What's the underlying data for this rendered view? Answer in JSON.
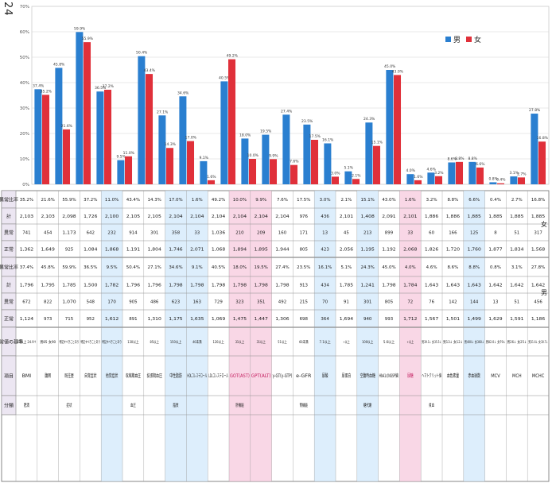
{
  "page_number": "24",
  "colors": {
    "male": "#2a7fd0",
    "female": "#e0303a",
    "table_header_bg": "#ece6f2",
    "highlight_blue": "#cfe7fb",
    "highlight_pink": "#f7c6dc",
    "dark_row": "#2b2b3a",
    "light_row": "#f2f2f2"
  },
  "table": {
    "header": {
      "category": "分類",
      "item": "項目",
      "criteria": "異常値の基準",
      "male_group": "男",
      "female_group": "女",
      "normal": "正常",
      "abnormal": "異常",
      "total": "計",
      "ratio": "異常比率"
    },
    "rows": [
      {
        "category": "肥満",
        "item": "BMI",
        "criteria": "25以上 24.9↑",
        "m_normal": "1,124",
        "m_abnormal": "672",
        "m_total": "1,796",
        "m_ratio": "37.4%",
        "f_normal": "1,362",
        "f_abnormal": "741",
        "f_total": "2,103",
        "f_ratio": "35.2%",
        "highlight": "none"
      },
      {
        "category": "",
        "item": "腹囲",
        "criteria": "男85 女90",
        "m_normal": "973",
        "m_abnormal": "822",
        "m_total": "1,795",
        "m_ratio": "45.8%",
        "f_normal": "1,649",
        "f_abnormal": "454",
        "f_total": "2,103",
        "f_ratio": "21.6%",
        "highlight": "none"
      },
      {
        "category": "症状",
        "item": "既往歴",
        "criteria": "特記すべきことあり",
        "m_normal": "715",
        "m_abnormal": "1,070",
        "m_total": "1,785",
        "m_ratio": "59.9%",
        "f_normal": "925",
        "f_abnormal": "1,173",
        "f_total": "2,098",
        "f_ratio": "55.9%",
        "highlight": "none"
      },
      {
        "category": "",
        "item": "自覚症状",
        "criteria": "特記すべきことあり",
        "m_normal": "952",
        "m_abnormal": "548",
        "m_total": "1,500",
        "m_ratio": "36.5%",
        "f_normal": "1,084",
        "f_abnormal": "642",
        "f_total": "1,726",
        "f_ratio": "37.2%",
        "highlight": "none"
      },
      {
        "category": "",
        "item": "他覚症状",
        "criteria": "特記すべきことあり",
        "m_normal": "1,612",
        "m_abnormal": "170",
        "m_total": "1,782",
        "m_ratio": "9.5%",
        "f_normal": "1,868",
        "f_abnormal": "232",
        "f_total": "2,100",
        "f_ratio": "11.0%",
        "highlight": "blue"
      },
      {
        "category": "血圧",
        "item": "収縮期血圧",
        "criteria": "130以上",
        "m_normal": "891",
        "m_abnormal": "905",
        "m_total": "1,796",
        "m_ratio": "50.4%",
        "f_normal": "1,191",
        "f_abnormal": "914",
        "f_total": "2,105",
        "f_ratio": "43.4%",
        "highlight": "none"
      },
      {
        "category": "",
        "item": "拡張期血圧",
        "criteria": "85以上",
        "m_normal": "1,310",
        "m_abnormal": "486",
        "m_total": "1,796",
        "m_ratio": "27.1%",
        "f_normal": "1,804",
        "f_abnormal": "301",
        "f_total": "2,105",
        "f_ratio": "14.3%",
        "highlight": "none"
      },
      {
        "category": "脂質",
        "item": "中性脂肪",
        "criteria": "150以上",
        "m_normal": "1,175",
        "m_abnormal": "623",
        "m_total": "1,798",
        "m_ratio": "34.6%",
        "f_normal": "1,746",
        "f_abnormal": "358",
        "f_total": "2,104",
        "f_ratio": "17.0%",
        "highlight": "blue"
      },
      {
        "category": "",
        "item": "HDLコレステロール",
        "criteria": "40未満",
        "m_normal": "1,635",
        "m_abnormal": "163",
        "m_total": "1,798",
        "m_ratio": "9.1%",
        "f_normal": "2,071",
        "f_abnormal": "33",
        "f_total": "2,104",
        "f_ratio": "1.6%",
        "highlight": "blue"
      },
      {
        "category": "",
        "item": "LDLコレステロール",
        "criteria": "120以上",
        "m_normal": "1,069",
        "m_abnormal": "729",
        "m_total": "1,798",
        "m_ratio": "40.5%",
        "f_normal": "1,068",
        "f_abnormal": "1,036",
        "f_total": "2,104",
        "f_ratio": "49.2%",
        "highlight": "none"
      },
      {
        "category": "肝機能",
        "item": "GOT(AST)",
        "criteria": "31以上",
        "m_normal": "1,475",
        "m_abnormal": "323",
        "m_total": "1,798",
        "m_ratio": "18.0%",
        "f_normal": "1,894",
        "f_abnormal": "210",
        "f_total": "2,104",
        "f_ratio": "10.0%",
        "highlight": "pink"
      },
      {
        "category": "",
        "item": "GPT(ALT)",
        "criteria": "31以上",
        "m_normal": "1,447",
        "m_abnormal": "351",
        "m_total": "1,798",
        "m_ratio": "19.5%",
        "f_normal": "1,895",
        "f_abnormal": "209",
        "f_total": "2,104",
        "f_ratio": "9.9%",
        "highlight": "pink"
      },
      {
        "category": "",
        "item": "γ-GT(γ-GTP)",
        "criteria": "51以上",
        "m_normal": "1,306",
        "m_abnormal": "492",
        "m_total": "1,798",
        "m_ratio": "27.4%",
        "f_normal": "1,944",
        "f_abnormal": "160",
        "f_total": "2,104",
        "f_ratio": "7.6%",
        "highlight": "none"
      },
      {
        "category": "腎機能",
        "item": "e-GFR",
        "criteria": "60未満",
        "m_normal": "698",
        "m_abnormal": "215",
        "m_total": "913",
        "m_ratio": "23.5%",
        "f_normal": "805",
        "f_abnormal": "171",
        "f_total": "976",
        "f_ratio": "17.5%",
        "highlight": "none"
      },
      {
        "category": "",
        "item": "尿酸",
        "criteria": "7.1以上",
        "m_normal": "364",
        "m_abnormal": "70",
        "m_total": "434",
        "m_ratio": "16.1%",
        "f_normal": "423",
        "f_abnormal": "13",
        "f_total": "436",
        "f_ratio": "3.0%",
        "highlight": "blue"
      },
      {
        "category": "",
        "item": "尿蛋白",
        "criteria": "+以上",
        "m_normal": "1,694",
        "m_abnormal": "91",
        "m_total": "1,785",
        "m_ratio": "5.1%",
        "f_normal": "2,056",
        "f_abnormal": "45",
        "f_total": "2,101",
        "f_ratio": "2.1%",
        "highlight": "none"
      },
      {
        "category": "糖代謝",
        "item": "空腹時血糖",
        "criteria": "100以上",
        "m_normal": "940",
        "m_abnormal": "301",
        "m_total": "1,241",
        "m_ratio": "24.3%",
        "f_normal": "1,195",
        "f_abnormal": "213",
        "f_total": "1,408",
        "f_ratio": "15.1%",
        "highlight": "blue"
      },
      {
        "category": "",
        "item": "HbA1c(NGSP値)",
        "criteria": "5.6以上",
        "m_normal": "993",
        "m_abnormal": "805",
        "m_total": "1,798",
        "m_ratio": "45.0%",
        "f_normal": "1,192",
        "f_abnormal": "899",
        "f_total": "2,091",
        "f_ratio": "43.0%",
        "highlight": "none"
      },
      {
        "category": "",
        "item": "尿糖",
        "criteria": "+以上",
        "m_normal": "1,712",
        "m_abnormal": "72",
        "m_total": "1,784",
        "m_ratio": "4.0%",
        "f_normal": "2,068",
        "f_abnormal": "33",
        "f_total": "2,101",
        "f_ratio": "1.6%",
        "highlight": "pink"
      },
      {
        "category": "貧血",
        "item": "ヘマトクリット値",
        "criteria": "男39.1↓ 女35.5↓",
        "m_normal": "1,567",
        "m_abnormal": "76",
        "m_total": "1,643",
        "m_ratio": "4.6%",
        "f_normal": "1,826",
        "f_abnormal": "60",
        "f_total": "1,886",
        "f_ratio": "3.2%",
        "highlight": "none"
      },
      {
        "category": "",
        "item": "血色素量",
        "criteria": "男13↓ 女12↓",
        "m_normal": "1,501",
        "m_abnormal": "142",
        "m_total": "1,643",
        "m_ratio": "8.6%",
        "f_normal": "1,720",
        "f_abnormal": "166",
        "f_total": "1,886",
        "f_ratio": "8.8%",
        "highlight": "none"
      },
      {
        "category": "",
        "item": "赤血球数",
        "criteria": "男400↓ 女360↓",
        "m_normal": "1,499",
        "m_abnormal": "144",
        "m_total": "1,643",
        "m_ratio": "8.8%",
        "f_normal": "1,760",
        "f_abnormal": "125",
        "f_total": "1,885",
        "f_ratio": "6.6%",
        "highlight": "blue"
      },
      {
        "category": "",
        "item": "MCV",
        "criteria": "男82.0↓ 女79↓",
        "m_normal": "1,629",
        "m_abnormal": "13",
        "m_total": "1,642",
        "m_ratio": "0.8%",
        "f_normal": "1,877",
        "f_abnormal": "8",
        "f_total": "1,885",
        "f_ratio": "0.4%",
        "highlight": "none"
      },
      {
        "category": "",
        "item": "MCH",
        "criteria": "男26↓ 女25↓",
        "m_normal": "1,591",
        "m_abnormal": "51",
        "m_total": "1,642",
        "m_ratio": "3.1%",
        "f_normal": "1,834",
        "f_abnormal": "51",
        "f_total": "1,885",
        "f_ratio": "2.7%",
        "highlight": "none"
      },
      {
        "category": "",
        "item": "MCHC",
        "criteria": "男31.6↓ 女30.7↓",
        "m_normal": "1,186",
        "m_abnormal": "456",
        "m_total": "1,642",
        "m_ratio": "27.8%",
        "f_normal": "1,568",
        "f_abnormal": "317",
        "f_total": "1,885",
        "f_ratio": "16.8%",
        "highlight": "none"
      }
    ]
  },
  "chart_data": {
    "type": "bar",
    "categories": [
      "BMI",
      "腹囲",
      "既往歴",
      "自覚症状",
      "他覚症状",
      "収縮期血圧",
      "拡張期血圧",
      "中性脂肪",
      "HDLコレステロール",
      "LDLコレステロール",
      "GOT(AST)",
      "GPT(ALT)",
      "γ-GT(γ-GTP)",
      "e-GFR",
      "尿酸",
      "尿蛋白",
      "空腹時血糖",
      "HbA1c(NGSP値)",
      "尿糖",
      "ヘマトクリット値",
      "血色素量",
      "赤血球数",
      "MCV",
      "MCH",
      "MCHC"
    ],
    "series": [
      {
        "name": "男",
        "color": "#2a7fd0",
        "values": [
          37.4,
          45.8,
          59.9,
          36.5,
          9.5,
          50.4,
          27.1,
          34.6,
          9.1,
          40.5,
          18.0,
          19.5,
          27.4,
          23.5,
          16.1,
          5.1,
          24.3,
          45.0,
          4.0,
          4.6,
          8.6,
          8.8,
          0.8,
          3.1,
          27.8
        ],
        "labels": [
          "37.4%",
          "45.8%",
          "59.9%",
          "36.5%",
          "9.5%",
          "50.4%",
          "27.1%",
          "34.6%",
          "9.1%",
          "40.5%",
          "18.0%",
          "19.5%",
          "27.4%",
          "23.5%",
          "16.1%",
          "5.1%",
          "24.3%",
          "45.0%",
          "4.0%",
          "4.6%",
          "8.6%",
          "8.8%",
          "0.8%",
          "3.1%",
          "27.8%"
        ]
      },
      {
        "name": "女",
        "color": "#e0303a",
        "values": [
          35.2,
          21.6,
          55.9,
          37.2,
          11.0,
          43.4,
          14.3,
          17.0,
          1.6,
          49.2,
          10.0,
          9.9,
          7.6,
          17.5,
          3.0,
          2.1,
          15.1,
          43.0,
          1.6,
          3.2,
          8.8,
          6.6,
          0.4,
          2.7,
          16.8
        ],
        "labels": [
          "35.2%",
          "21.6%",
          "55.9%",
          "37.2%",
          "11.0%",
          "43.4%",
          "14.3%",
          "17.0%",
          "1.6%",
          "49.2%",
          "10.0%",
          "9.9%",
          "7.6%",
          "17.5%",
          "3.0%",
          "2.1%",
          "15.1%",
          "43.0%",
          "1.6%",
          "3.2%",
          "8.8%",
          "6.6%",
          "0.4%",
          "2.7%",
          "16.8%"
        ]
      }
    ],
    "ylim": [
      0,
      70
    ],
    "yticks": [
      "0%",
      "10%",
      "20%",
      "30%",
      "40%",
      "50%",
      "60%",
      "70%"
    ],
    "grid": true,
    "legend_position": "top-right",
    "xlabel": "",
    "ylabel": ""
  }
}
